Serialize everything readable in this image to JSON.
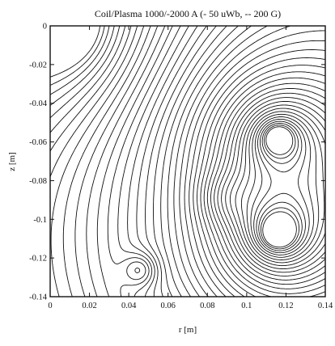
{
  "chart_data": {
    "type": "contour",
    "title": "Coil/Plasma 1000/-2000 A (- 50 uWb, -- 200 G)",
    "xlabel": "r [m]",
    "ylabel": "z [m]",
    "xlim": [
      0,
      0.14
    ],
    "ylim": [
      -0.14,
      0
    ],
    "xticks": [
      "0",
      "0.02",
      "0.04",
      "0.06",
      "0.08",
      "0.1",
      "0.12",
      "0.14"
    ],
    "yticks": [
      "0",
      "-0.02",
      "-0.04",
      "-0.06",
      "-0.08",
      "-0.1",
      "-0.12",
      "-0.14"
    ],
    "line_color": "#111111",
    "features": {
      "corner_origin": [
        0.007,
        0
      ],
      "coil_pole_upper": [
        0.116,
        -0.058
      ],
      "coil_pole_lower": [
        0.116,
        -0.107
      ],
      "island_left": [
        0.046,
        -0.126
      ],
      "island_center": [
        0.089,
        -0.089
      ],
      "lower_separatrix": [
        0.076,
        -0.092
      ]
    }
  }
}
